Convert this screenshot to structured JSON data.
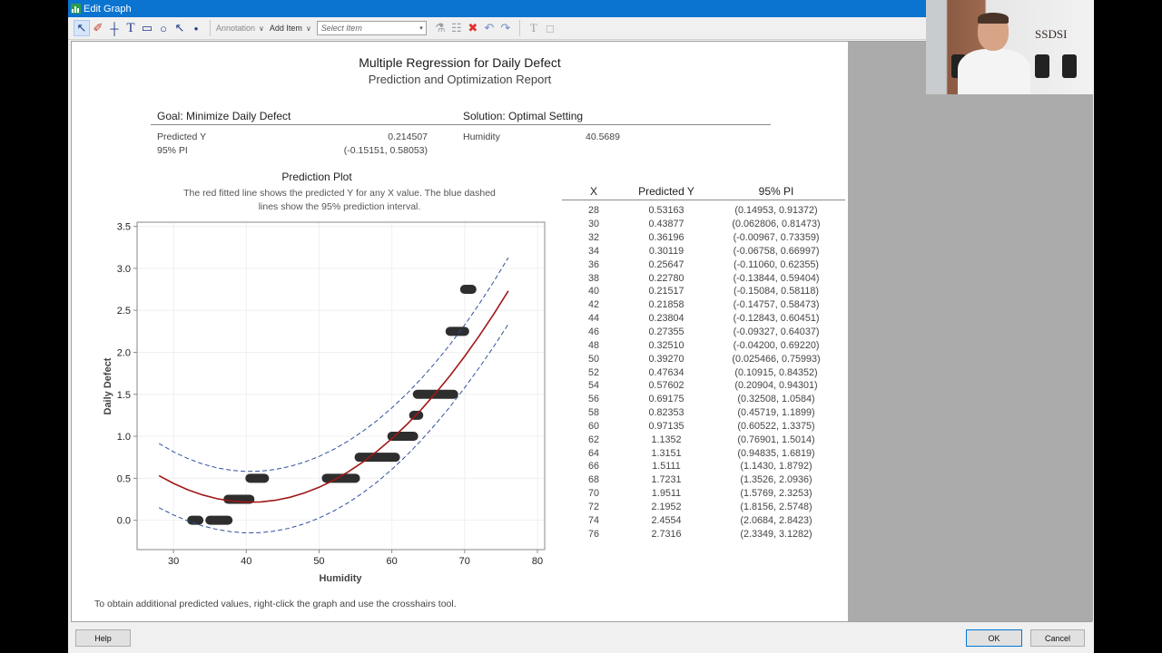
{
  "window": {
    "title": "Edit Graph"
  },
  "toolbar": {
    "tools": [
      "select-icon",
      "brush-icon",
      "crosshairs-icon",
      "text-icon",
      "rectangle-icon",
      "ellipse-icon",
      "arrow-icon",
      "marker-icon"
    ],
    "annotation_label": "Annotation",
    "add_item_label": "Add Item",
    "select_item_placeholder": "Select Item",
    "right_tools": [
      "format-icon",
      "properties-icon",
      "delete-icon",
      "undo-icon",
      "redo-icon",
      "text-format-icon",
      "data-window-icon"
    ]
  },
  "report": {
    "title": "Multiple Regression for Daily Defect",
    "subtitle": "Prediction and Optimization Report",
    "goal": {
      "heading": "Goal: Minimize Daily Defect",
      "predicted_y_label": "Predicted Y",
      "predicted_y_value": "0.214507",
      "pi_label": "95% PI",
      "pi_value": "(-0.15151, 0.58053)"
    },
    "solution": {
      "heading": "Solution: Optimal Setting",
      "variable_label": "Humidity",
      "variable_value": "40.5689"
    },
    "plot": {
      "title": "Prediction Plot",
      "description": "The red fitted line shows the predicted Y for any X value. The blue dashed lines show the 95% prediction interval."
    },
    "table": {
      "headers": [
        "X",
        "Predicted Y",
        "95% PI"
      ],
      "rows": [
        [
          "28",
          "0.53163",
          "(0.14953, 0.91372)"
        ],
        [
          "30",
          "0.43877",
          "(0.062806, 0.81473)"
        ],
        [
          "32",
          "0.36196",
          "(-0.00967, 0.73359)"
        ],
        [
          "34",
          "0.30119",
          "(-0.06758, 0.66997)"
        ],
        [
          "36",
          "0.25647",
          "(-0.11060, 0.62355)"
        ],
        [
          "38",
          "0.22780",
          "(-0.13844, 0.59404)"
        ],
        [
          "40",
          "0.21517",
          "(-0.15084, 0.58118)"
        ],
        [
          "42",
          "0.21858",
          "(-0.14757, 0.58473)"
        ],
        [
          "44",
          "0.23804",
          "(-0.12843, 0.60451)"
        ],
        [
          "46",
          "0.27355",
          "(-0.09327, 0.64037)"
        ],
        [
          "48",
          "0.32510",
          "(-0.04200, 0.69220)"
        ],
        [
          "50",
          "0.39270",
          "(0.025466, 0.75993)"
        ],
        [
          "52",
          "0.47634",
          "(0.10915, 0.84352)"
        ],
        [
          "54",
          "0.57602",
          "(0.20904, 0.94301)"
        ],
        [
          "56",
          "0.69175",
          "(0.32508, 1.0584)"
        ],
        [
          "58",
          "0.82353",
          "(0.45719, 1.1899)"
        ],
        [
          "60",
          "0.97135",
          "(0.60522, 1.3375)"
        ],
        [
          "62",
          "1.1352",
          "(0.76901, 1.5014)"
        ],
        [
          "64",
          "1.3151",
          "(0.94835, 1.6819)"
        ],
        [
          "66",
          "1.5111",
          "(1.1430, 1.8792)"
        ],
        [
          "68",
          "1.7231",
          "(1.3526, 2.0936)"
        ],
        [
          "70",
          "1.9511",
          "(1.5769, 2.3253)"
        ],
        [
          "72",
          "2.1952",
          "(1.8156, 2.5748)"
        ],
        [
          "74",
          "2.4554",
          "(2.0684, 2.8423)"
        ],
        [
          "76",
          "2.7316",
          "(2.3349, 3.1282)"
        ]
      ]
    },
    "footnote": "To obtain additional predicted values, right-click the graph and use the crosshairs tool."
  },
  "buttons": {
    "help": "Help",
    "ok": "OK",
    "cancel": "Cancel"
  },
  "webcam": {
    "logo_text": "SSDSI"
  },
  "colors": {
    "titlebar": "#0a74d0",
    "fit_line": "#a01818",
    "pi_line": "#2f4f9f",
    "points": "#2e2e2e"
  },
  "chart_data": {
    "type": "scatter",
    "title": "Prediction Plot",
    "xlabel": "Humidity",
    "ylabel": "Daily Defect",
    "xlim": [
      25,
      81
    ],
    "ylim": [
      -0.35,
      3.55
    ],
    "xticks": [
      30,
      40,
      50,
      60,
      70,
      80
    ],
    "yticks": [
      0.0,
      0.5,
      1.0,
      1.5,
      2.0,
      2.5,
      3.0,
      3.5
    ],
    "grid": true,
    "series": [
      {
        "name": "Fitted line",
        "style": "solid-red",
        "x": [
          28,
          30,
          32,
          34,
          36,
          38,
          40,
          42,
          44,
          46,
          48,
          50,
          52,
          54,
          56,
          58,
          60,
          62,
          64,
          66,
          68,
          70,
          72,
          74,
          76
        ],
        "values": [
          0.53163,
          0.43877,
          0.36196,
          0.30119,
          0.25647,
          0.2278,
          0.21517,
          0.21858,
          0.23804,
          0.27355,
          0.3251,
          0.3927,
          0.47634,
          0.57602,
          0.69175,
          0.82353,
          0.97135,
          1.1352,
          1.3151,
          1.5111,
          1.7231,
          1.9511,
          2.1952,
          2.4554,
          2.7316
        ]
      },
      {
        "name": "95% PI lower",
        "style": "dashed-blue",
        "x": [
          28,
          30,
          32,
          34,
          36,
          38,
          40,
          42,
          44,
          46,
          48,
          50,
          52,
          54,
          56,
          58,
          60,
          62,
          64,
          66,
          68,
          70,
          72,
          74,
          76
        ],
        "values": [
          0.14953,
          0.062806,
          -0.00967,
          -0.06758,
          -0.1106,
          -0.13844,
          -0.15084,
          -0.14757,
          -0.12843,
          -0.09327,
          -0.042,
          0.025466,
          0.10915,
          0.20904,
          0.32508,
          0.45719,
          0.60522,
          0.76901,
          0.94835,
          1.143,
          1.3526,
          1.5769,
          1.8156,
          2.0684,
          2.3349
        ]
      },
      {
        "name": "95% PI upper",
        "style": "dashed-blue",
        "x": [
          28,
          30,
          32,
          34,
          36,
          38,
          40,
          42,
          44,
          46,
          48,
          50,
          52,
          54,
          56,
          58,
          60,
          62,
          64,
          66,
          68,
          70,
          72,
          74,
          76
        ],
        "values": [
          0.91372,
          0.81473,
          0.73359,
          0.66997,
          0.62355,
          0.59404,
          0.58118,
          0.58473,
          0.60451,
          0.64037,
          0.6922,
          0.75993,
          0.84352,
          0.94301,
          1.0584,
          1.1899,
          1.3375,
          1.5014,
          1.6819,
          1.8792,
          2.0936,
          2.3253,
          2.5748,
          2.8423,
          3.1282
        ]
      },
      {
        "name": "Observations (approx. clusters)",
        "style": "points",
        "clusters": [
          {
            "y": 0.0,
            "x_from": 32.5,
            "x_to": 33.5
          },
          {
            "y": 0.0,
            "x_from": 35,
            "x_to": 37.5
          },
          {
            "y": 0.25,
            "x_from": 37.5,
            "x_to": 40.5
          },
          {
            "y": 0.5,
            "x_from": 40.5,
            "x_to": 42.5
          },
          {
            "y": 0.5,
            "x_from": 51,
            "x_to": 55
          },
          {
            "y": 0.75,
            "x_from": 55.5,
            "x_to": 60.5
          },
          {
            "y": 1.0,
            "x_from": 60,
            "x_to": 63
          },
          {
            "y": 1.25,
            "x_from": 63,
            "x_to": 63.7
          },
          {
            "y": 1.5,
            "x_from": 63.5,
            "x_to": 68.5
          },
          {
            "y": 2.25,
            "x_from": 68,
            "x_to": 70
          },
          {
            "y": 2.75,
            "x_from": 70,
            "x_to": 71
          }
        ]
      }
    ]
  }
}
